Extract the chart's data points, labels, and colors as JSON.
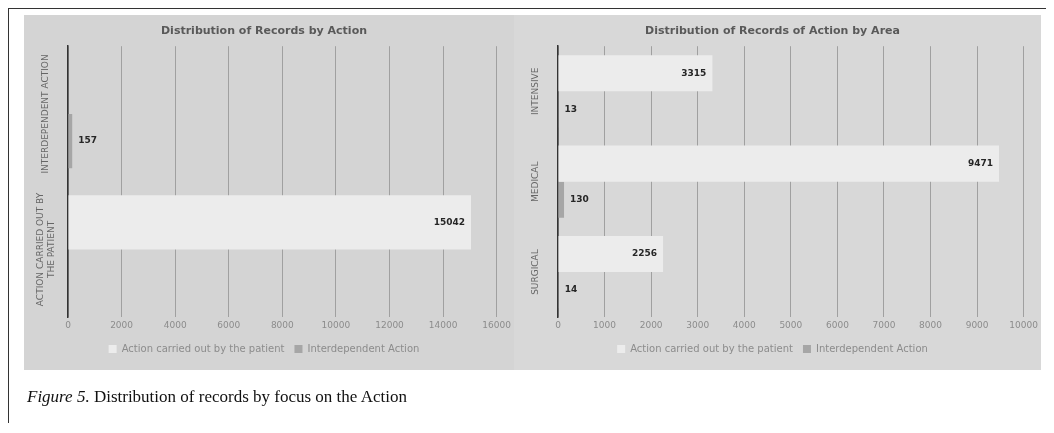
{
  "chart_data": [
    {
      "type": "bar",
      "orientation": "horizontal",
      "title": "Distribution of Records by Action",
      "categories": [
        "INTERDEPENDENT ACTION",
        "ACTION CARRIED OUT BY THE PATIENT"
      ],
      "series": [
        {
          "name": "Action carried out by the patient",
          "color": "#ececec",
          "values": [
            null,
            15042
          ]
        },
        {
          "name": "Interdependent Action",
          "color": "#a6a6a6",
          "values": [
            157,
            null
          ]
        }
      ],
      "xlim": [
        0,
        16000
      ],
      "xticks": [
        0,
        2000,
        4000,
        6000,
        8000,
        10000,
        12000,
        14000,
        16000
      ],
      "grid": "x",
      "legend": "bottom",
      "data_labels": true,
      "annotations": [
        "Figure 5. Distribution of records by focus on the Action"
      ]
    },
    {
      "type": "bar",
      "orientation": "horizontal",
      "title": "Distribution of Records of Action by Area",
      "categories": [
        "INTENSIVE",
        "MEDICAL",
        "SURGICAL"
      ],
      "series": [
        {
          "name": "Action carried out by the patient",
          "color": "#ececec",
          "values": [
            3315,
            9471,
            2256
          ]
        },
        {
          "name": "Interdependent Action",
          "color": "#a6a6a6",
          "values": [
            13,
            130,
            14
          ]
        }
      ],
      "xlim": [
        0,
        10000
      ],
      "xticks": [
        0,
        1000,
        2000,
        3000,
        4000,
        5000,
        6000,
        7000,
        8000,
        9000,
        10000
      ],
      "grid": "x",
      "legend": "bottom",
      "data_labels": true
    }
  ]
}
